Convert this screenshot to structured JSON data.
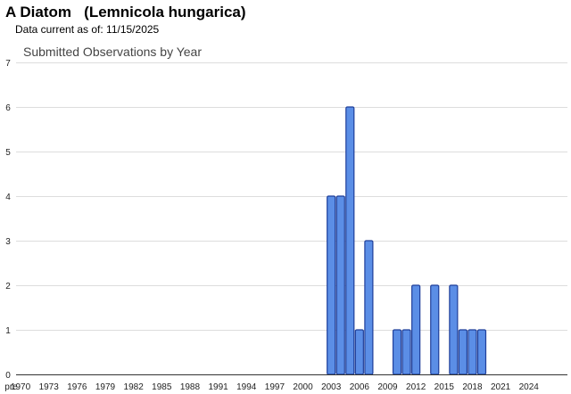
{
  "header": {
    "title": "A Diatom   (Lemnicola hungarica)",
    "data_current": "Data current as of: 11/15/2025"
  },
  "colors": {
    "bar_fill": "#5b8ee6",
    "bar_stroke": "#1f3f9a",
    "grid": "#dddddd"
  },
  "chart_data": {
    "type": "bar",
    "title": "Submitted Observations by Year",
    "xlabel": "",
    "ylabel": "",
    "ylim": [
      0,
      7
    ],
    "y_ticks": [
      0,
      1,
      2,
      3,
      4,
      5,
      6,
      7
    ],
    "grid": true,
    "legend": "none",
    "categories": [
      "pre",
      "1970",
      "1971",
      "1972",
      "1973",
      "1974",
      "1975",
      "1976",
      "1977",
      "1978",
      "1979",
      "1980",
      "1981",
      "1982",
      "1983",
      "1984",
      "1985",
      "1986",
      "1987",
      "1988",
      "1989",
      "1990",
      "1991",
      "1992",
      "1993",
      "1994",
      "1995",
      "1996",
      "1997",
      "1998",
      "1999",
      "2000",
      "2001",
      "2002",
      "2003",
      "2004",
      "2005",
      "2006",
      "2007",
      "2008",
      "2009",
      "2010",
      "2011",
      "2012",
      "2013",
      "2014",
      "2015",
      "2016",
      "2017",
      "2018",
      "2019",
      "2020",
      "2021",
      "2022",
      "2023",
      "2024",
      "2025"
    ],
    "values": [
      0,
      0,
      0,
      0,
      0,
      0,
      0,
      0,
      0,
      0,
      0,
      0,
      0,
      0,
      0,
      0,
      0,
      0,
      0,
      0,
      0,
      0,
      0,
      0,
      0,
      0,
      0,
      0,
      0,
      0,
      0,
      0,
      0,
      0,
      4,
      4,
      6,
      1,
      3,
      0,
      0,
      1,
      1,
      2,
      0,
      2,
      0,
      2,
      1,
      1,
      1,
      0,
      0,
      0,
      0,
      0,
      0
    ],
    "x_tick_labels": [
      "pre",
      "1970",
      "1973",
      "1976",
      "1979",
      "1982",
      "1985",
      "1988",
      "1991",
      "1994",
      "1997",
      "2000",
      "2003",
      "2006",
      "2009",
      "2012",
      "2015",
      "2018",
      "2021",
      "2024"
    ]
  }
}
